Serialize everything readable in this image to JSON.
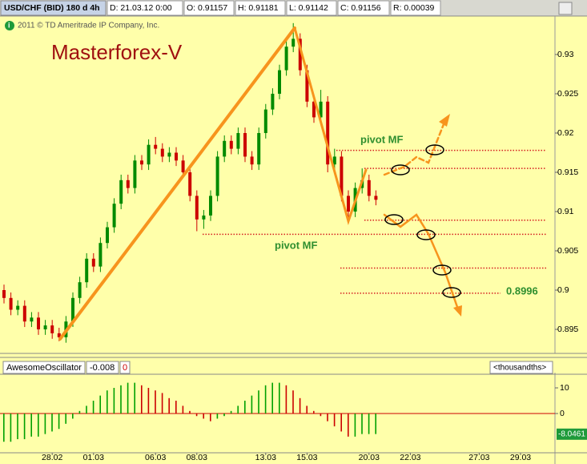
{
  "chart_data": [
    {
      "type": "candlestick",
      "symbol": "USD/CHF (BID) 180 d 4h",
      "info": [
        "D: 21.03.12 0:00",
        "O: 0.91157",
        "H: 0.91181",
        "L: 0.91142",
        "C: 0.91156",
        "R: 0.00039"
      ],
      "copyright": "2011 © TD Ameritrade IP Company, Inc.",
      "title": "Masterforex-V",
      "annotations": [
        "pivot MF",
        "pivot MF"
      ],
      "levels": [
        0.9178,
        0.9155,
        0.9089,
        0.9071,
        0.9028,
        0.8996
      ],
      "level_color": "#d42020",
      "up_color": "#008a00",
      "down_color": "#cc0000",
      "categories": [
        null,
        null,
        null,
        null,
        null,
        null,
        null,
        "28.02",
        null,
        null,
        null,
        null,
        null,
        "01.03",
        null,
        null,
        null,
        null,
        null,
        null,
        null,
        null,
        "06.03",
        null,
        null,
        null,
        null,
        null,
        "08.03",
        null,
        null,
        null,
        null,
        null,
        null,
        null,
        null,
        null,
        "13.03",
        null,
        null,
        null,
        null,
        null,
        "15.03",
        null,
        null,
        null,
        null,
        null,
        null,
        null,
        null,
        "20.03",
        null,
        null,
        null,
        null,
        null,
        "22.03",
        null,
        null,
        null,
        null,
        null,
        null,
        null,
        null,
        null,
        "27.03",
        null,
        null,
        null,
        null,
        null,
        "29.03",
        null,
        null,
        null,
        null
      ],
      "open": [
        0.9,
        0.899,
        0.8975,
        0.898,
        0.896,
        0.8965,
        0.895,
        0.8955,
        0.8945,
        0.894,
        0.896,
        0.899,
        0.901,
        0.904,
        0.903,
        0.906,
        0.908,
        0.911,
        0.914,
        0.913,
        0.9165,
        0.916,
        0.9185,
        0.918,
        0.917,
        0.9175,
        0.9165,
        0.915,
        0.912,
        0.909,
        0.9095,
        0.912,
        0.917,
        0.919,
        0.918,
        0.92,
        0.917,
        0.916,
        0.92,
        0.923,
        0.925,
        0.928,
        0.931,
        0.932,
        0.928,
        0.924,
        0.922,
        0.924,
        0.916,
        0.917,
        0.912,
        0.91,
        0.913,
        0.914,
        0.912,
        null,
        null,
        null,
        null,
        null,
        null,
        null,
        null,
        null,
        null,
        null,
        null,
        null,
        null,
        null,
        null,
        null,
        null,
        null,
        null,
        null,
        null,
        null,
        null,
        null
      ],
      "high": [
        0.9007,
        0.8997,
        0.8987,
        0.8987,
        0.8972,
        0.8972,
        0.8962,
        0.8962,
        0.8952,
        0.8967,
        0.8997,
        0.9017,
        0.9047,
        0.9047,
        0.9067,
        0.9087,
        0.9117,
        0.9147,
        0.9147,
        0.9172,
        0.9172,
        0.9192,
        0.9195,
        0.9187,
        0.9182,
        0.9182,
        0.9172,
        0.9157,
        0.9127,
        0.9102,
        0.9127,
        0.9177,
        0.9197,
        0.9197,
        0.9207,
        0.9207,
        0.9177,
        0.9207,
        0.9237,
        0.9257,
        0.9287,
        0.9317,
        0.934,
        0.9327,
        0.9287,
        0.9247,
        0.9255,
        0.9247,
        0.918,
        0.9177,
        0.9127,
        0.9137,
        0.9155,
        0.9147,
        0.9127,
        null,
        null,
        null,
        null,
        null,
        null,
        null,
        null,
        null,
        null,
        null,
        null,
        null,
        null,
        null,
        null,
        null,
        null,
        null,
        null,
        null,
        null,
        null,
        null,
        null
      ],
      "low": [
        0.8983,
        0.8968,
        0.8968,
        0.8953,
        0.8953,
        0.8943,
        0.8943,
        0.8938,
        0.8935,
        0.8933,
        0.8953,
        0.8983,
        0.9003,
        0.9023,
        0.9023,
        0.9053,
        0.9073,
        0.9103,
        0.9123,
        0.9123,
        0.9153,
        0.9153,
        0.9173,
        0.9163,
        0.9163,
        0.9158,
        0.9143,
        0.9113,
        0.9075,
        0.9078,
        0.9088,
        0.9113,
        0.9163,
        0.9173,
        0.9173,
        0.9163,
        0.9153,
        0.9153,
        0.9193,
        0.9223,
        0.9243,
        0.9273,
        0.9303,
        0.9273,
        0.9233,
        0.9213,
        0.9213,
        0.915,
        0.9153,
        0.9113,
        0.9088,
        0.9093,
        0.9123,
        0.9113,
        0.9108,
        null,
        null,
        null,
        null,
        null,
        null,
        null,
        null,
        null,
        null,
        null,
        null,
        null,
        null,
        null,
        null,
        null,
        null,
        null,
        null,
        null,
        null,
        null,
        null,
        null
      ],
      "close": [
        0.899,
        0.8975,
        0.898,
        0.896,
        0.8965,
        0.895,
        0.8955,
        0.8945,
        0.894,
        0.896,
        0.899,
        0.901,
        0.904,
        0.903,
        0.906,
        0.908,
        0.911,
        0.914,
        0.913,
        0.9165,
        0.916,
        0.9185,
        0.918,
        0.917,
        0.9175,
        0.9165,
        0.915,
        0.912,
        0.909,
        0.9095,
        0.912,
        0.917,
        0.919,
        0.918,
        0.92,
        0.917,
        0.916,
        0.92,
        0.923,
        0.925,
        0.928,
        0.931,
        0.932,
        0.928,
        0.924,
        0.922,
        0.924,
        0.916,
        0.917,
        0.912,
        0.91,
        0.913,
        0.914,
        0.912,
        0.9115,
        null,
        null,
        null,
        null,
        null,
        null,
        null,
        null,
        null,
        null,
        null,
        null,
        null,
        null,
        null,
        null,
        null,
        null,
        null,
        null,
        null,
        null,
        null,
        null,
        null
      ],
      "ylim": [
        0.89204,
        0.93439
      ],
      "yticks": [
        0.895,
        0.9,
        0.905,
        0.91,
        0.915,
        0.92,
        0.925,
        0.93
      ]
    },
    {
      "type": "bar",
      "title": "AwesomeOscillator",
      "current": -0.008,
      "shift": 0,
      "units": "<thousandths>",
      "last_value": -8.0461,
      "up_color": "#00a000",
      "down_color": "#cc0000",
      "values": [
        -11,
        -11,
        -10,
        -10,
        -9,
        -9,
        -8,
        -7,
        -6,
        -4,
        -2,
        1,
        3,
        5,
        7,
        9,
        10,
        11,
        12,
        12,
        11,
        10,
        9,
        8,
        6,
        5,
        3,
        1,
        -1,
        -2,
        -3,
        -2,
        -1,
        1,
        3,
        5,
        7,
        9,
        11,
        12,
        12,
        11,
        9,
        6,
        3,
        1,
        -1,
        -3,
        -5,
        -7,
        -9,
        -9,
        -8,
        -8,
        -8,
        null,
        null,
        null,
        null,
        null,
        null,
        null,
        null,
        null,
        null,
        null,
        null,
        null,
        null,
        null,
        null,
        null,
        null,
        null,
        null,
        null,
        null,
        null,
        null,
        null
      ],
      "ylim": [
        -15.3,
        15
      ],
      "yticks": [
        0,
        10
      ]
    }
  ]
}
